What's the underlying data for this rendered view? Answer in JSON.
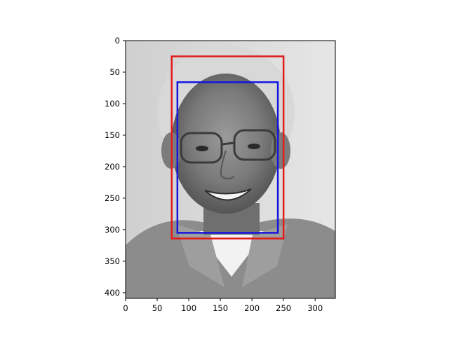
{
  "chart_data": {
    "type": "image",
    "image_description": "grayscale portrait of a smiling elderly man wearing glasses and a collared shirt",
    "x_extent": [
      0,
      332
    ],
    "y_extent": [
      0,
      409
    ],
    "y_inverted": true,
    "xticks": [
      "0",
      "50",
      "100",
      "150",
      "200",
      "250",
      "300"
    ],
    "yticks": [
      "0",
      "50",
      "100",
      "150",
      "200",
      "250",
      "300",
      "350",
      "400"
    ],
    "boxes": [
      {
        "color": "#e31b1b",
        "x0": 73,
        "y0": 25,
        "x1": 250,
        "y1": 314
      },
      {
        "color": "#1515e0",
        "x0": 82,
        "y0": 66,
        "x1": 241,
        "y1": 305
      }
    ],
    "grid": false
  }
}
